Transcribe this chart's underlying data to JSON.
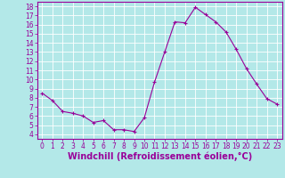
{
  "x": [
    0,
    1,
    2,
    3,
    4,
    5,
    6,
    7,
    8,
    9,
    10,
    11,
    12,
    13,
    14,
    15,
    16,
    17,
    18,
    19,
    20,
    21,
    22,
    23
  ],
  "y": [
    8.5,
    7.7,
    6.5,
    6.3,
    6.0,
    5.3,
    5.5,
    4.5,
    4.5,
    4.3,
    5.8,
    9.7,
    13.0,
    16.3,
    16.2,
    17.9,
    17.1,
    16.3,
    15.2,
    13.3,
    11.2,
    9.5,
    7.9,
    7.3
  ],
  "line_color": "#990099",
  "marker": "+",
  "marker_size": 3,
  "bg_color": "#b3e8e8",
  "grid_color": "#ffffff",
  "xlabel": "Windchill (Refroidissement éolien,°C)",
  "xlabel_color": "#990099",
  "tick_color": "#990099",
  "xlim": [
    -0.5,
    23.5
  ],
  "ylim": [
    3.5,
    18.5
  ],
  "yticks": [
    4,
    5,
    6,
    7,
    8,
    9,
    10,
    11,
    12,
    13,
    14,
    15,
    16,
    17,
    18
  ],
  "xticks": [
    0,
    1,
    2,
    3,
    4,
    5,
    6,
    7,
    8,
    9,
    10,
    11,
    12,
    13,
    14,
    15,
    16,
    17,
    18,
    19,
    20,
    21,
    22,
    23
  ],
  "xtick_labels": [
    "0",
    "1",
    "2",
    "3",
    "4",
    "5",
    "6",
    "7",
    "8",
    "9",
    "10",
    "11",
    "12",
    "13",
    "14",
    "15",
    "16",
    "17",
    "18",
    "19",
    "20",
    "21",
    "22",
    "23"
  ],
  "ytick_labels": [
    "4",
    "5",
    "6",
    "7",
    "8",
    "9",
    "10",
    "11",
    "12",
    "13",
    "14",
    "15",
    "16",
    "17",
    "18"
  ],
  "spine_color": "#990099",
  "tick_font_size": 5.5,
  "xlabel_font_size": 7.0,
  "linewidth": 0.8,
  "markeredgewidth": 0.8
}
